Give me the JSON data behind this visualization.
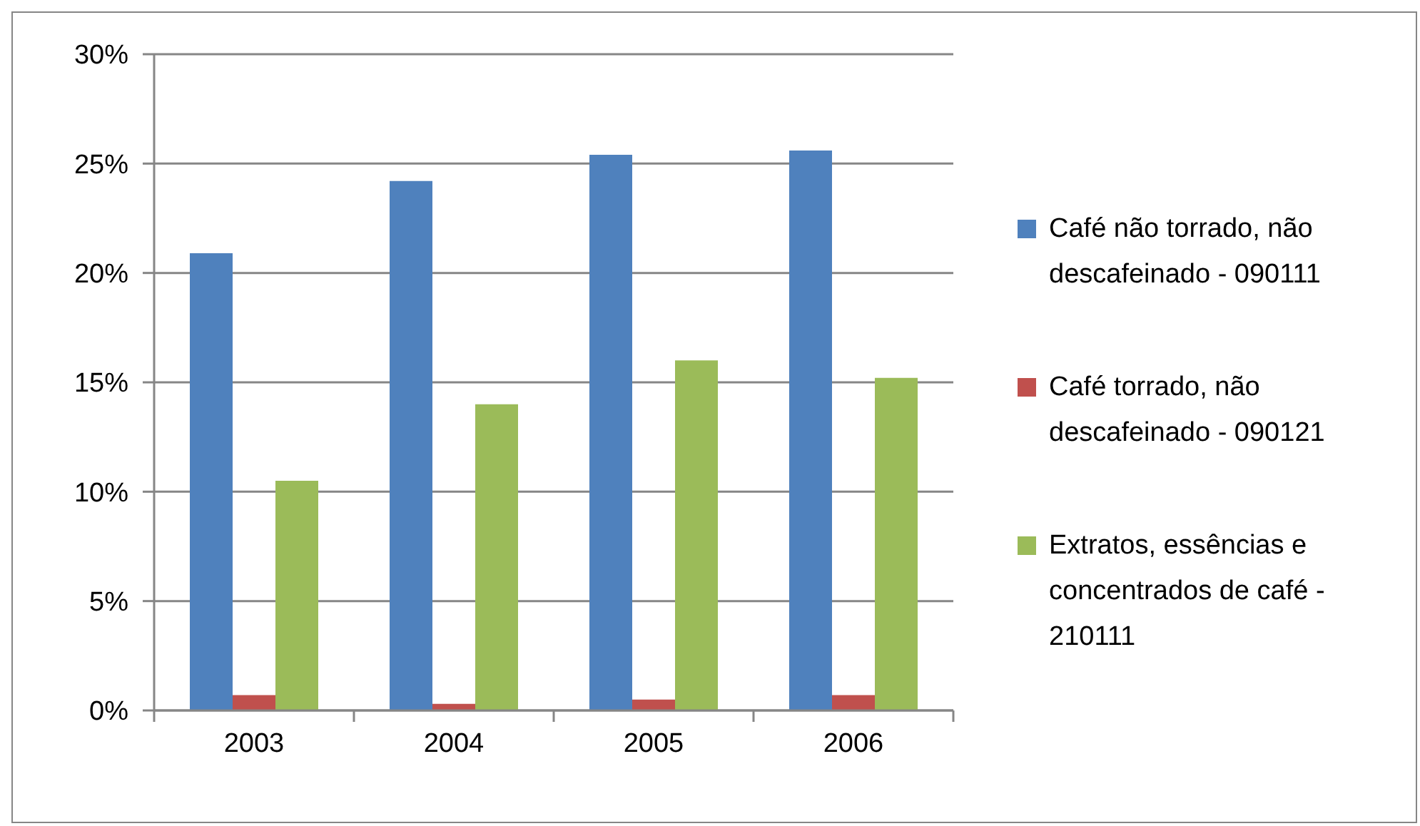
{
  "chart_data": {
    "type": "bar",
    "categories": [
      "2003",
      "2004",
      "2005",
      "2006"
    ],
    "series": [
      {
        "name": "Café não torrado, não descafeinado - 090111",
        "color": "#4f81bd",
        "values": [
          20.9,
          24.2,
          25.4,
          25.6
        ]
      },
      {
        "name": "Café torrado, não descafeinado - 090121",
        "color": "#c0504d",
        "values": [
          0.7,
          0.3,
          0.5,
          0.7
        ]
      },
      {
        "name": "Extratos, essências e concentrados de café - 210111",
        "color": "#9bbb59",
        "values": [
          10.5,
          14.0,
          16.0,
          15.2
        ]
      }
    ],
    "ylim": [
      0,
      30
    ],
    "yticks": [
      {
        "value": 0,
        "label": "0%"
      },
      {
        "value": 5,
        "label": "5%"
      },
      {
        "value": 10,
        "label": "10%"
      },
      {
        "value": 15,
        "label": "15%"
      },
      {
        "value": 20,
        "label": "20%"
      },
      {
        "value": 25,
        "label": "25%"
      },
      {
        "value": 30,
        "label": "30%"
      }
    ],
    "grid": "y",
    "legend": "right"
  }
}
